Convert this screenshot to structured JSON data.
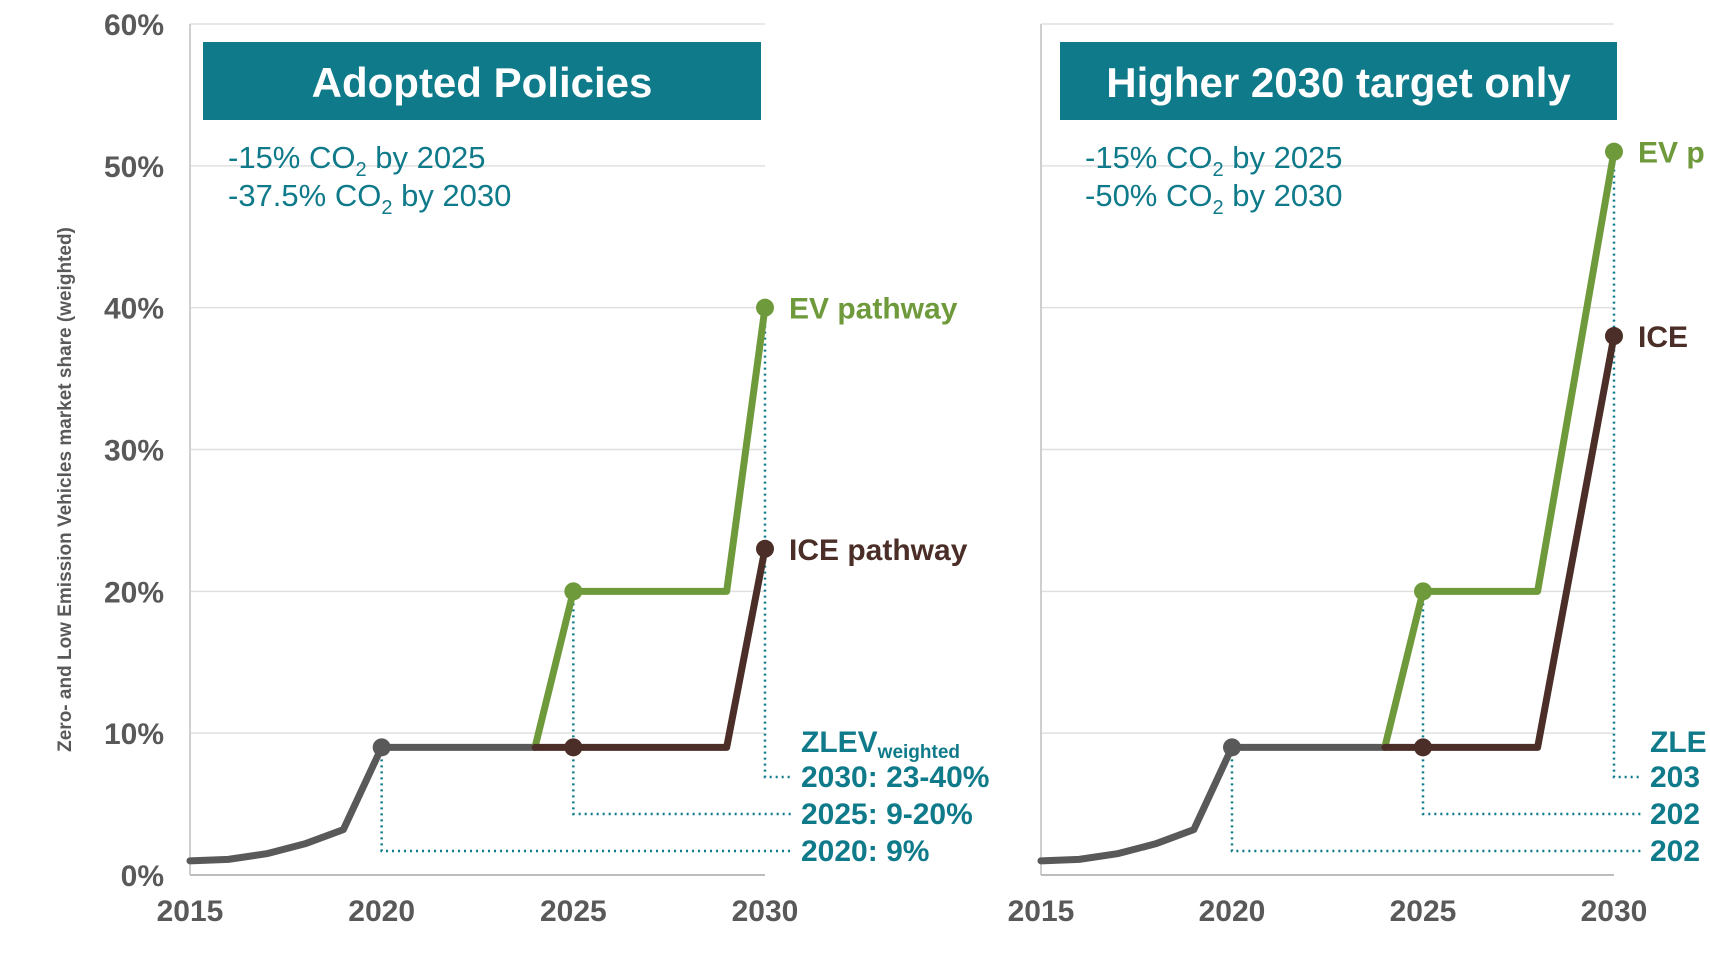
{
  "colors": {
    "history": "#595959",
    "ev": "#6f9a3c",
    "ice": "#4a2e27",
    "accent": "#0f7a8a",
    "grid": "#e0e0e0",
    "axis": "#595959"
  },
  "chart_data": [
    {
      "type": "line",
      "title": "Adopted Policies",
      "ylabel": "Zero- and Low Emission Vehicles market share (weighted)",
      "xlabel": "",
      "xlim": [
        2015,
        2030
      ],
      "ylim": [
        0,
        60
      ],
      "xticks": [
        "2015",
        "2020",
        "2025",
        "2030"
      ],
      "yticks": [
        "0%",
        "10%",
        "20%",
        "30%",
        "40%",
        "50%",
        "60%"
      ],
      "grid": true,
      "notes": [
        {
          "pre": "-15% CO",
          "sub": "2",
          "post": " by 2025"
        },
        {
          "pre": "-37.5% CO",
          "sub": "2",
          "post": " by 2030"
        }
      ],
      "series": [
        {
          "name": "History",
          "key": "history",
          "x": [
            2015,
            2016,
            2017,
            2018,
            2019,
            2020
          ],
          "y": [
            1,
            1.1,
            1.5,
            2.2,
            3.2,
            9
          ]
        },
        {
          "name": "EV pathway",
          "key": "ev",
          "x": [
            2024,
            2025,
            2029,
            2030
          ],
          "y": [
            9,
            20,
            20,
            40
          ]
        },
        {
          "name": "ICE pathway",
          "key": "ice",
          "x": [
            2024,
            2025,
            2029,
            2030
          ],
          "y": [
            9,
            9,
            9,
            23
          ]
        },
        {
          "name": "Base",
          "key": "history",
          "x": [
            2020,
            2024
          ],
          "y": [
            9,
            9
          ]
        }
      ],
      "markers": [
        {
          "x": 2020,
          "y": 9,
          "key": "history"
        },
        {
          "x": 2025,
          "y": 20,
          "key": "ev"
        },
        {
          "x": 2025,
          "y": 9,
          "key": "ice"
        },
        {
          "x": 2030,
          "y": 40,
          "key": "ev"
        },
        {
          "x": 2030,
          "y": 23,
          "key": "ice"
        }
      ],
      "end_labels": [
        {
          "text": "EV pathway",
          "key": "ev",
          "y": 40
        },
        {
          "text": "ICE pathway",
          "key": "ice",
          "y": 23
        }
      ],
      "zlev_main": "ZLEV",
      "zlev_sub": "weighted",
      "annotations": [
        {
          "text": "2030: 23-40%",
          "x": 2030
        },
        {
          "text": "2025: 9-20%",
          "x": 2025
        },
        {
          "text": "2020: 9%",
          "x": 2020
        }
      ]
    },
    {
      "type": "line",
      "title": "Higher 2030 target only",
      "ylabel": "",
      "xlabel": "",
      "xlim": [
        2015,
        2030
      ],
      "ylim": [
        0,
        60
      ],
      "xticks": [
        "2015",
        "2020",
        "2025",
        "2030"
      ],
      "yticks": [],
      "grid": true,
      "notes": [
        {
          "pre": "-15% CO",
          "sub": "2",
          "post": " by 2025"
        },
        {
          "pre": "-50% CO",
          "sub": "2",
          "post": " by 2030"
        }
      ],
      "series": [
        {
          "name": "History",
          "key": "history",
          "x": [
            2015,
            2016,
            2017,
            2018,
            2019,
            2020
          ],
          "y": [
            1,
            1.1,
            1.5,
            2.2,
            3.2,
            9
          ]
        },
        {
          "name": "EV pathway",
          "key": "ev",
          "x": [
            2024,
            2025,
            2028,
            2030
          ],
          "y": [
            9,
            20,
            20,
            51
          ]
        },
        {
          "name": "ICE pathway",
          "key": "ice",
          "x": [
            2024,
            2025,
            2028,
            2030
          ],
          "y": [
            9,
            9,
            9,
            38
          ]
        },
        {
          "name": "Base",
          "key": "history",
          "x": [
            2020,
            2024
          ],
          "y": [
            9,
            9
          ]
        }
      ],
      "markers": [
        {
          "x": 2020,
          "y": 9,
          "key": "history"
        },
        {
          "x": 2025,
          "y": 20,
          "key": "ev"
        },
        {
          "x": 2025,
          "y": 9,
          "key": "ice"
        },
        {
          "x": 2030,
          "y": 51,
          "key": "ev"
        },
        {
          "x": 2030,
          "y": 38,
          "key": "ice"
        }
      ],
      "end_labels": [
        {
          "text": "EV p",
          "key": "ev",
          "y": 51
        },
        {
          "text": "ICE",
          "key": "ice",
          "y": 38
        }
      ],
      "zlev_main": "ZLE",
      "zlev_sub": "",
      "annotations": [
        {
          "text": "203",
          "x": 2030
        },
        {
          "text": "202",
          "x": 2025
        },
        {
          "text": "202",
          "x": 2020
        }
      ]
    }
  ]
}
